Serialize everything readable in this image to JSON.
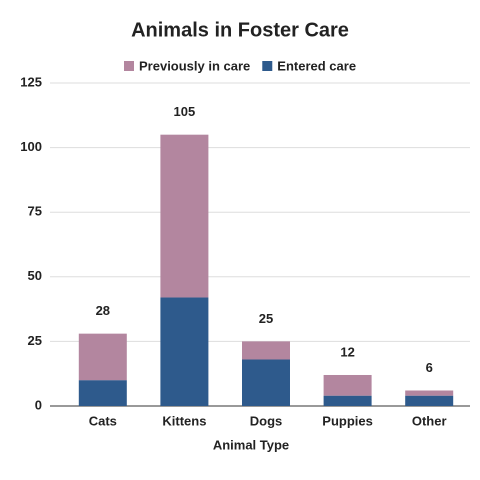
{
  "chart_data": {
    "type": "stacked_bar",
    "title": "Animals in Foster Care",
    "x_label": "Animal Type",
    "categories": [
      "Cats",
      "Kittens",
      "Dogs",
      "Puppies",
      "Other"
    ],
    "series": [
      {
        "name": "Previously in care",
        "color": "#b3869f",
        "values": [
          18,
          63,
          7,
          8,
          2
        ]
      },
      {
        "name": "Entered care",
        "color": "#2e5a8c",
        "values": [
          10,
          42,
          18,
          4,
          4
        ]
      }
    ],
    "totals": [
      28,
      105,
      25,
      12,
      6
    ],
    "ylim": [
      0,
      125
    ],
    "yticks": [
      0,
      25,
      50,
      75,
      100,
      125
    ],
    "grid": true
  }
}
